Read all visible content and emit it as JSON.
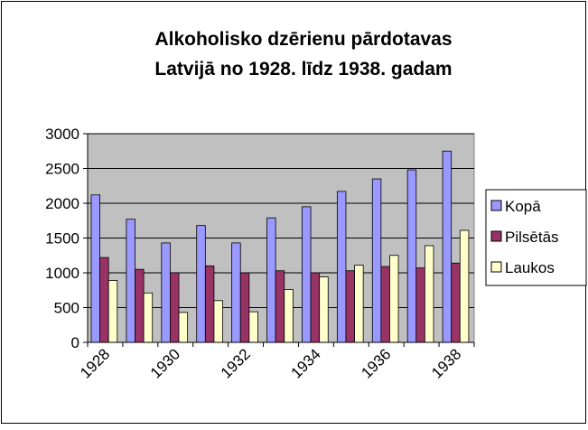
{
  "chart_data": {
    "type": "bar",
    "title": [
      "Alkoholisko dzērienu pārdotavas",
      "Latvijā no 1928. līdz 1938. gadam"
    ],
    "categories": [
      "1928",
      null,
      "1930",
      null,
      "1932",
      null,
      "1934",
      null,
      "1936",
      null,
      "1938"
    ],
    "series": [
      {
        "name": "Kopā",
        "color": "#9999ff",
        "values": [
          2120,
          1770,
          1430,
          1680,
          1430,
          1790,
          1950,
          2170,
          2350,
          2480,
          2750
        ]
      },
      {
        "name": "Pilsētās",
        "color": "#993366",
        "values": [
          1220,
          1050,
          1000,
          1100,
          1000,
          1030,
          1000,
          1030,
          1090,
          1070,
          1140
        ]
      },
      {
        "name": "Laukos",
        "color": "#ffffcc",
        "values": [
          890,
          710,
          430,
          600,
          440,
          760,
          940,
          1110,
          1250,
          1390,
          1610
        ]
      }
    ],
    "ylim": [
      0,
      3000
    ],
    "yticks": [
      0,
      500,
      1000,
      1500,
      2000,
      2500,
      3000
    ],
    "grid": true,
    "legend": "right",
    "plot_background": "#c0c0c0"
  }
}
